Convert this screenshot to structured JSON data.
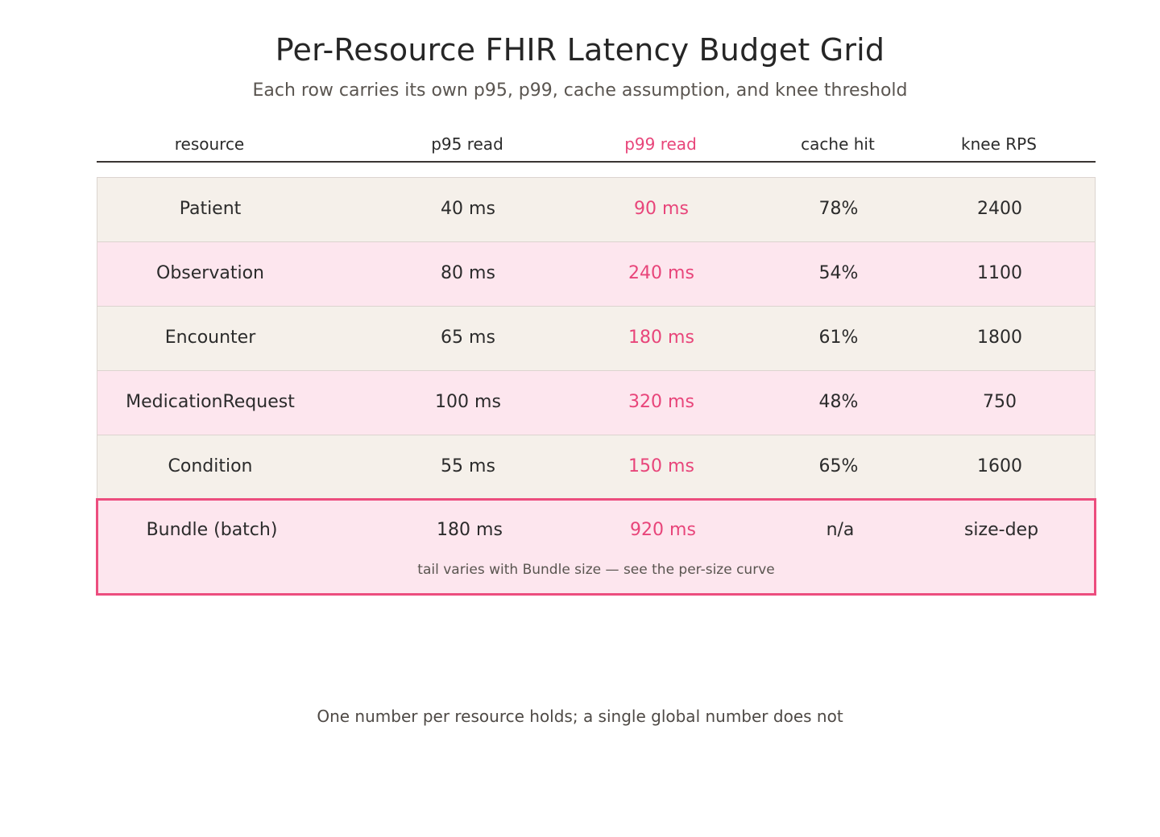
{
  "title": "Per-Resource FHIR Latency Budget Grid",
  "subtitle": "Each row carries its own p95, p99, cache assumption, and knee threshold",
  "columns": [
    "resource",
    "p95 read",
    "p99 read",
    "cache hit",
    "knee RPS"
  ],
  "accent_color": "#e8457a",
  "rows": [
    {
      "resource": "Patient",
      "p95": "40 ms",
      "p99": "90 ms",
      "cache": "78%",
      "knee": "2400"
    },
    {
      "resource": "Observation",
      "p95": "80 ms",
      "p99": "240 ms",
      "cache": "54%",
      "knee": "1100"
    },
    {
      "resource": "Encounter",
      "p95": "65 ms",
      "p99": "180 ms",
      "cache": "61%",
      "knee": "1800"
    },
    {
      "resource": "MedicationRequest",
      "p95": "100 ms",
      "p99": "320 ms",
      "cache": "48%",
      "knee": "750"
    },
    {
      "resource": "Condition",
      "p95": "55 ms",
      "p99": "150 ms",
      "cache": "65%",
      "knee": "1600"
    },
    {
      "resource": "Bundle (batch)",
      "p95": "180 ms",
      "p99": "920 ms",
      "cache": "n/a",
      "knee": "size-dep",
      "note": "tail varies with Bundle size — see the per-size curve"
    }
  ],
  "footer": "One number per resource holds; a single global number does not"
}
